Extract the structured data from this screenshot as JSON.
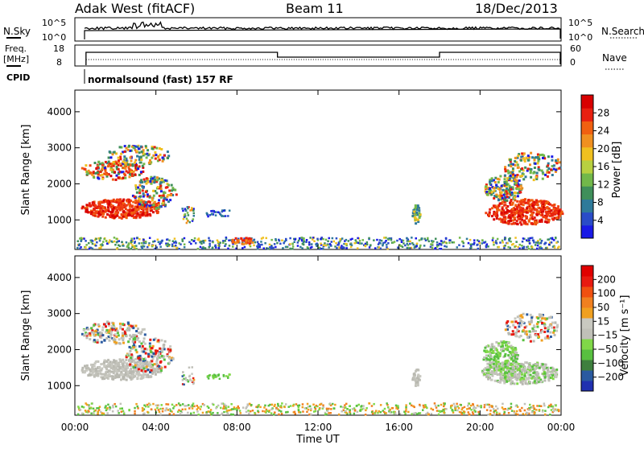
{
  "header": {
    "station": "Adak West (fitACF)",
    "beam": "Beam 11",
    "date": "18/Dec/2013"
  },
  "top_panels": {
    "nsky_label": "N.Sky",
    "nsearch_label": "N.Search",
    "nsky_ticks": [
      "10^5",
      "10^0"
    ],
    "nsearch_ticks": [
      "10^5",
      "10^0"
    ],
    "freq_label_1": "Freq.",
    "freq_label_2": "[MHz]",
    "freq_ticks": [
      "18",
      "8"
    ],
    "nave_label": "Nave",
    "nave_ticks": [
      "60",
      "0"
    ],
    "cpid_label": "CPID",
    "cpid_text": "normalsound (fast) 157 RF"
  },
  "chart_data": [
    {
      "type": "heatmap",
      "name": "power-panel",
      "ylabel": "Slant Range [km]",
      "ylim": [
        180,
        4600
      ],
      "yticks": [
        1000,
        2000,
        3000,
        4000
      ],
      "xlim_hours": [
        0,
        24
      ],
      "colorbar_label": "Power [dB]",
      "colorbar_ticks": [
        "4",
        "8",
        "12",
        "16",
        "20",
        "24",
        "28"
      ],
      "colorbar_colors": [
        "#1a1ae6",
        "#2a4cc8",
        "#2f7a9a",
        "#3f8f5a",
        "#72b84a",
        "#b8d040",
        "#f0c020",
        "#f09020",
        "#f06010",
        "#e82010",
        "#d80000"
      ]
    },
    {
      "type": "heatmap",
      "name": "velocity-panel",
      "ylabel": "Slant Range [km]",
      "ylim": [
        180,
        4600
      ],
      "yticks": [
        1000,
        2000,
        3000,
        4000
      ],
      "xlim_hours": [
        0,
        24
      ],
      "colorbar_label": "Velocity [m s⁻¹]",
      "colorbar_ticks": [
        "200",
        "100",
        "50",
        "15",
        "−15",
        "−50",
        "−100",
        "−200"
      ],
      "colorbar_colors": [
        "#2030b0",
        "#2a5aa0",
        "#3e7f3e",
        "#58c040",
        "#80d848",
        "#c0c0b8",
        "#c8c8c0",
        "#f0a020",
        "#f08020",
        "#f05010",
        "#e81a10",
        "#e00000"
      ]
    }
  ],
  "x_axis": {
    "ticks": [
      "00:00",
      "04:00",
      "08:00",
      "12:00",
      "16:00",
      "20:00",
      "00:00"
    ],
    "label": "Time UT"
  }
}
